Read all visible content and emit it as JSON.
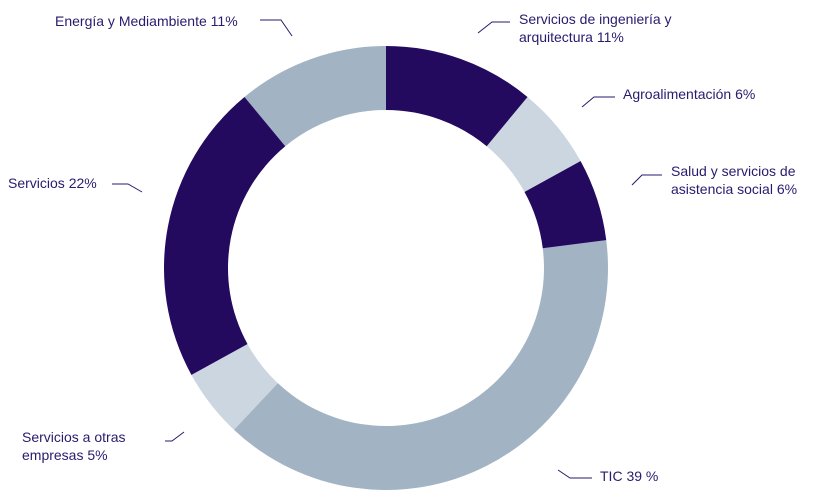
{
  "chart_data": {
    "type": "donut",
    "categories": [
      "Servicios de ingeniería y arquitectura",
      "Agroalimentación",
      "Salud y servicios de asistencia social",
      "TIC",
      "Servicios a otras empresas",
      "Servicios",
      "Energía y Mediambiente"
    ],
    "values": [
      11,
      6,
      6,
      39,
      5,
      22,
      11
    ],
    "value_labels": [
      "11%",
      "6%",
      "6%",
      "39 %",
      "5%",
      "22%",
      "11%"
    ],
    "colors": [
      "#230a5e",
      "#ccd6e0",
      "#230a5e",
      "#a2b4c4",
      "#ccd6e0",
      "#230a5e",
      "#a2b4c4"
    ]
  }
}
